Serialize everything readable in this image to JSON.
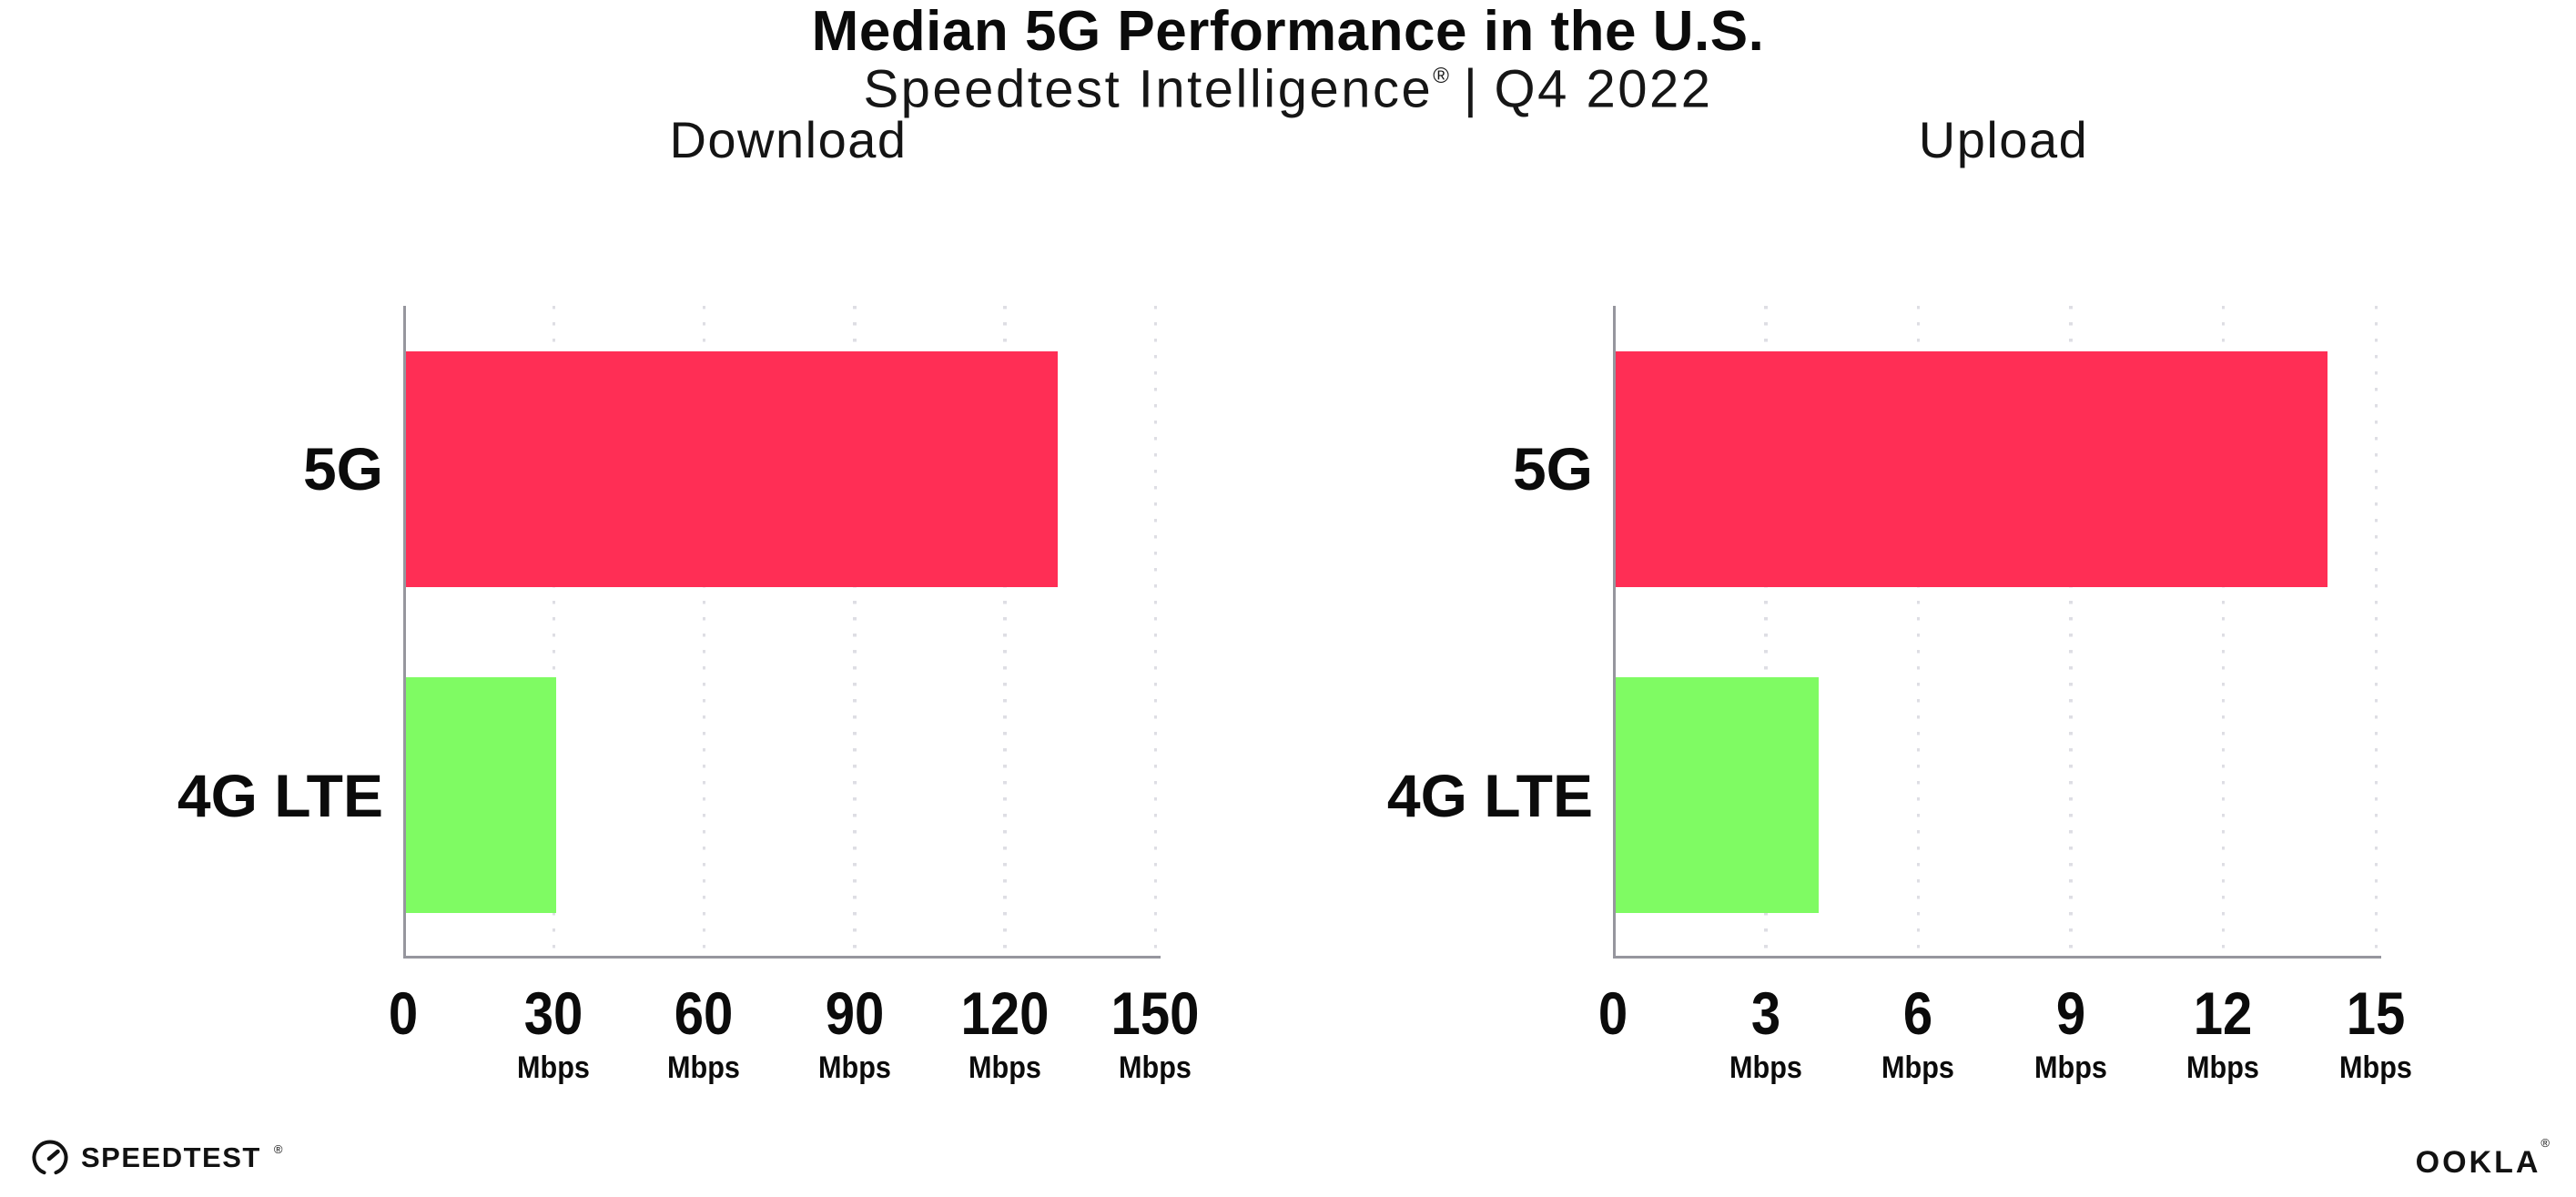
{
  "header": {
    "title": "Median 5G Performance in the U.S.",
    "subtitle": {
      "brand": "Speedtest Intelligence",
      "mark": "®",
      "separator": "|",
      "period": "Q4 2022"
    }
  },
  "chart_data": [
    {
      "type": "bar",
      "orientation": "horizontal",
      "title": "Download",
      "categories": [
        "5G",
        "4G LTE"
      ],
      "values": [
        130,
        30
      ],
      "unit": "Mbps",
      "xlim": [
        0,
        150
      ],
      "xticks": [
        0,
        30,
        60,
        90,
        120,
        150
      ],
      "xtick_unit_label": "Mbps",
      "bar_colors": [
        "#ff2e55",
        "#7ffb63"
      ],
      "grid": "dotted-vertical-gridlines",
      "legend": "none"
    },
    {
      "type": "bar",
      "orientation": "horizontal",
      "title": "Upload",
      "categories": [
        "5G",
        "4G LTE"
      ],
      "values": [
        14,
        4
      ],
      "unit": "Mbps",
      "xlim": [
        0,
        15
      ],
      "xticks": [
        0,
        3,
        6,
        9,
        12,
        15
      ],
      "xtick_unit_label": "Mbps",
      "bar_colors": [
        "#ff2e55",
        "#7ffb63"
      ],
      "grid": "dotted-vertical-gridlines",
      "legend": "none"
    }
  ],
  "footer": {
    "speedtest": {
      "label": "SPEEDTEST",
      "mark": "®",
      "icon": "speedtest-gauge-icon"
    },
    "ookla": {
      "label": "OOKLA",
      "mark": "®"
    }
  },
  "colors": {
    "bar_5g": "#ff2e55",
    "bar_4g_lte": "#7ffb63",
    "axis": "#96969e",
    "grid_dot": "#dedee4",
    "text": "#0b0b0b",
    "background": "#ffffff"
  }
}
